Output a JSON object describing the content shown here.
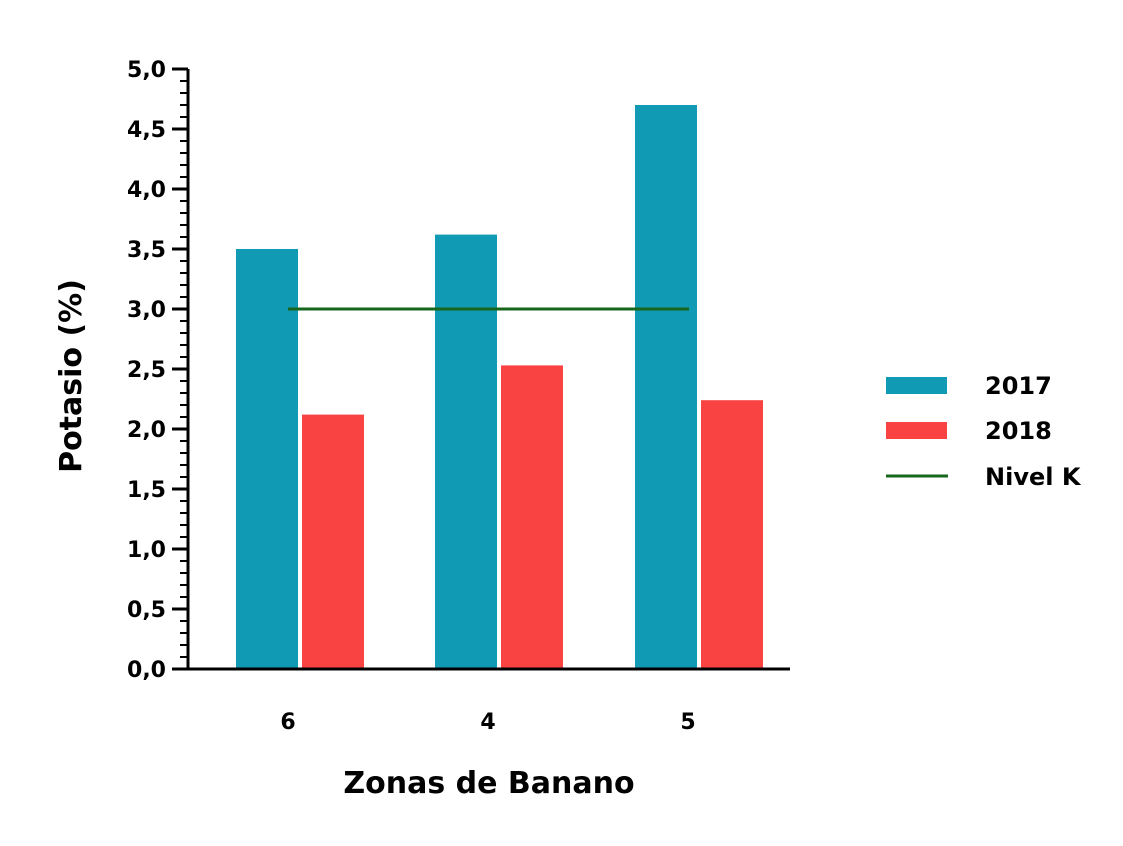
{
  "chart_data": {
    "type": "bar",
    "xlabel": "Zonas de Banano",
    "ylabel": "Potasio (%)",
    "categories": [
      "6",
      "4",
      "5"
    ],
    "series": [
      {
        "name": "2017",
        "values": [
          3.5,
          3.62,
          4.7
        ],
        "color": "#119aB4"
      },
      {
        "name": "2018",
        "values": [
          2.12,
          2.53,
          2.24
        ],
        "color": "#f94242"
      }
    ],
    "reference_line": {
      "name": "Nivel K",
      "value": 3.0,
      "color": "#17661c"
    },
    "ylim": [
      0,
      5
    ],
    "yticks": [
      "0,0",
      "0,5",
      "1,0",
      "1,5",
      "2,0",
      "2,5",
      "3,0",
      "3,5",
      "4,0",
      "4,5",
      "5,0"
    ],
    "grid": false,
    "legend_position": "right"
  }
}
